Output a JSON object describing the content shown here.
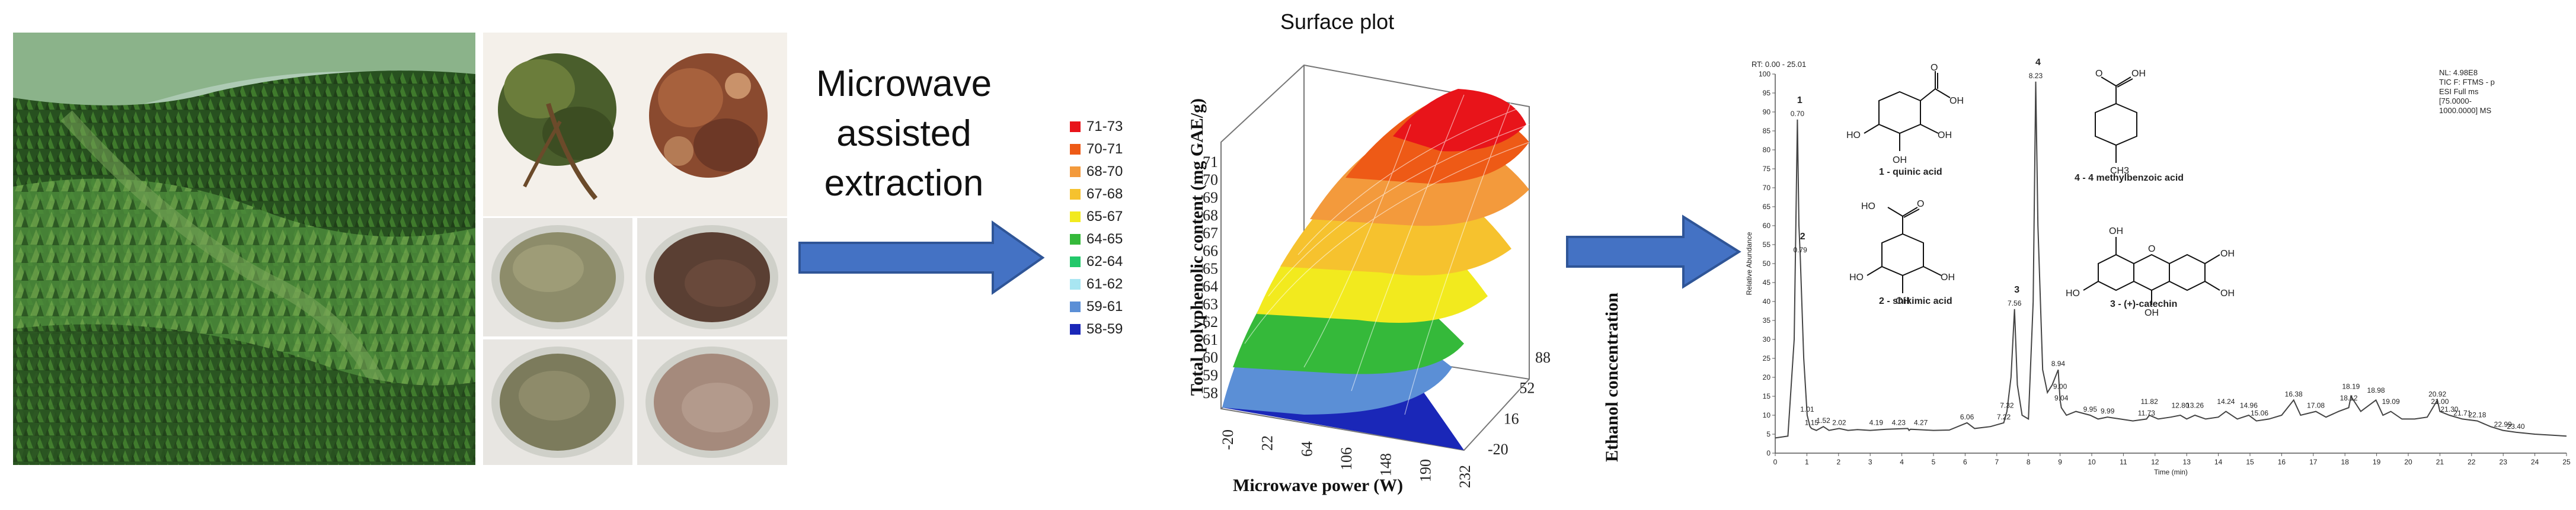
{
  "process": {
    "step1_label": "Microwave assisted extraction"
  },
  "surface_plot": {
    "title": "Surface plot",
    "legend": [
      {
        "range": "71-73",
        "color": "#e8141a"
      },
      {
        "range": "70-71",
        "color": "#ee5a16"
      },
      {
        "range": "68-70",
        "color": "#f39a3c"
      },
      {
        "range": "67-68",
        "color": "#f6c22e"
      },
      {
        "range": "65-67",
        "color": "#f2ea1e"
      },
      {
        "range": "64-65",
        "color": "#35b93a"
      },
      {
        "range": "62-64",
        "color": "#22c86a"
      },
      {
        "range": "61-62",
        "color": "#a8e6f2"
      },
      {
        "range": "59-61",
        "color": "#5b8fd6"
      },
      {
        "range": "58-59",
        "color": "#1a27b8"
      }
    ],
    "z_ticks": [
      "71",
      "70",
      "69",
      "68",
      "67",
      "66",
      "65",
      "64",
      "63",
      "62",
      "61",
      "60",
      "59",
      "58"
    ],
    "x_ticks": [
      "-20",
      "22",
      "64",
      "106",
      "148",
      "190",
      "232"
    ],
    "y_ticks": [
      "88",
      "52",
      "16",
      "-20"
    ],
    "zlabel": "Total polyphenolic content (mg GAE/g)",
    "xlabel": "Microwave power (W)",
    "ylabel": "Ethanol concentration"
  },
  "chart_data": {
    "type": "line",
    "title": "",
    "xlabel": "Time (min)",
    "ylabel": "Relative Abundance",
    "xlim": [
      0,
      25
    ],
    "ylim": [
      0,
      100
    ],
    "header_left": "RT: 0.00 - 25.01",
    "header_right": [
      "NL: 4.98E8",
      "TIC F: FTMS - p",
      "ESI Full ms",
      "[75.0000-",
      "1000.0000] MS"
    ],
    "x_ticks": [
      "0",
      "1",
      "2",
      "3",
      "4",
      "5",
      "6",
      "7",
      "8",
      "9",
      "10",
      "11",
      "12",
      "13",
      "14",
      "15",
      "16",
      "17",
      "18",
      "19",
      "20",
      "21",
      "22",
      "23",
      "24",
      "25"
    ],
    "y_ticks": [
      "0",
      "5",
      "10",
      "15",
      "20",
      "25",
      "30",
      "35",
      "40",
      "45",
      "50",
      "55",
      "60",
      "65",
      "70",
      "75",
      "80",
      "85",
      "90",
      "95",
      "100"
    ],
    "trace": [
      [
        0,
        4
      ],
      [
        0.4,
        4.5
      ],
      [
        0.6,
        30
      ],
      [
        0.7,
        88
      ],
      [
        0.75,
        60
      ],
      [
        0.79,
        52
      ],
      [
        0.9,
        25
      ],
      [
        1.01,
        10
      ],
      [
        1.1,
        7
      ],
      [
        1.15,
        6.5
      ],
      [
        1.3,
        6
      ],
      [
        1.52,
        7
      ],
      [
        1.7,
        6
      ],
      [
        2.02,
        6.5
      ],
      [
        2.3,
        6
      ],
      [
        2.6,
        6.2
      ],
      [
        3.0,
        6
      ],
      [
        3.5,
        6.3
      ],
      [
        4.19,
        6.5
      ],
      [
        4.23,
        6
      ],
      [
        4.5,
        6.2
      ],
      [
        4.27,
        6.3
      ],
      [
        5.0,
        6
      ],
      [
        5.5,
        6.1
      ],
      [
        6.06,
        8
      ],
      [
        6.3,
        6.5
      ],
      [
        6.8,
        7
      ],
      [
        7.22,
        8
      ],
      [
        7.32,
        11
      ],
      [
        7.45,
        20
      ],
      [
        7.56,
        38
      ],
      [
        7.65,
        18
      ],
      [
        7.8,
        10
      ],
      [
        8.0,
        9
      ],
      [
        8.15,
        40
      ],
      [
        8.23,
        98
      ],
      [
        8.3,
        60
      ],
      [
        8.45,
        22
      ],
      [
        8.6,
        16
      ],
      [
        8.75,
        18
      ],
      [
        8.94,
        22
      ],
      [
        9.0,
        14
      ],
      [
        9.04,
        12
      ],
      [
        9.2,
        10
      ],
      [
        9.5,
        11
      ],
      [
        9.95,
        10
      ],
      [
        10.2,
        9
      ],
      [
        10.5,
        9.5
      ],
      [
        10.9,
        9
      ],
      [
        11.3,
        8.5
      ],
      [
        11.73,
        9
      ],
      [
        11.82,
        10
      ],
      [
        12.1,
        9
      ],
      [
        12.5,
        9.5
      ],
      [
        12.8,
        10
      ],
      [
        13.0,
        9
      ],
      [
        13.26,
        10
      ],
      [
        13.6,
        9
      ],
      [
        14.0,
        9.5
      ],
      [
        14.24,
        11
      ],
      [
        14.6,
        9
      ],
      [
        14.96,
        10
      ],
      [
        15.2,
        8.5
      ],
      [
        15.6,
        9
      ],
      [
        16.0,
        10
      ],
      [
        16.38,
        14
      ],
      [
        16.6,
        10
      ],
      [
        17.08,
        11
      ],
      [
        17.4,
        9.5
      ],
      [
        17.8,
        11
      ],
      [
        18.12,
        12
      ],
      [
        18.19,
        15
      ],
      [
        18.5,
        11
      ],
      [
        18.98,
        14
      ],
      [
        19.2,
        10
      ],
      [
        19.45,
        11
      ],
      [
        19.8,
        9
      ],
      [
        20.2,
        9
      ],
      [
        20.6,
        9.5
      ],
      [
        20.92,
        14
      ],
      [
        21.0,
        11
      ],
      [
        21.3,
        10
      ],
      [
        21.71,
        9
      ],
      [
        22.18,
        8.5
      ],
      [
        22.6,
        7
      ],
      [
        22.99,
        6
      ],
      [
        23.4,
        5.5
      ],
      [
        24,
        5
      ],
      [
        25,
        4.5
      ]
    ],
    "peak_labels": [
      {
        "x": 0.7,
        "y": 88,
        "text": "0.70",
        "num": "1"
      },
      {
        "x": 0.79,
        "y": 52,
        "text": "0.79",
        "num": "2"
      },
      {
        "x": 1.01,
        "y": 10,
        "text": "1.01"
      },
      {
        "x": 1.15,
        "y": 6.5,
        "text": "1.15"
      },
      {
        "x": 1.52,
        "y": 7,
        "text": "1.52"
      },
      {
        "x": 2.02,
        "y": 6.5,
        "text": "2.02"
      },
      {
        "x": 3.19,
        "y": 6.5,
        "text": "4.19"
      },
      {
        "x": 3.9,
        "y": 6.5,
        "text": "4.23"
      },
      {
        "x": 4.6,
        "y": 6.5,
        "text": "4.27"
      },
      {
        "x": 6.06,
        "y": 8,
        "text": "6.06"
      },
      {
        "x": 7.22,
        "y": 8,
        "text": "7.22"
      },
      {
        "x": 7.32,
        "y": 11,
        "text": "7.32"
      },
      {
        "x": 7.56,
        "y": 38,
        "text": "7.56",
        "num": "3"
      },
      {
        "x": 8.23,
        "y": 98,
        "text": "8.23",
        "num": "4"
      },
      {
        "x": 8.94,
        "y": 22,
        "text": "8.94"
      },
      {
        "x": 9.0,
        "y": 16,
        "text": "9.00"
      },
      {
        "x": 9.04,
        "y": 13,
        "text": "9.04"
      },
      {
        "x": 9.95,
        "y": 10,
        "text": "9.95"
      },
      {
        "x": 10.5,
        "y": 9.5,
        "text": "9.99"
      },
      {
        "x": 11.73,
        "y": 9,
        "text": "11.73"
      },
      {
        "x": 11.82,
        "y": 12,
        "text": "11.82"
      },
      {
        "x": 12.8,
        "y": 11,
        "text": "12.80"
      },
      {
        "x": 13.26,
        "y": 11,
        "text": "13.26"
      },
      {
        "x": 14.24,
        "y": 12,
        "text": "14.24"
      },
      {
        "x": 14.96,
        "y": 11,
        "text": "14.96"
      },
      {
        "x": 15.3,
        "y": 9,
        "text": "15.06"
      },
      {
        "x": 16.38,
        "y": 14,
        "text": "16.38"
      },
      {
        "x": 17.08,
        "y": 11,
        "text": "17.08"
      },
      {
        "x": 18.12,
        "y": 13,
        "text": "18.12"
      },
      {
        "x": 18.19,
        "y": 16,
        "text": "18.19"
      },
      {
        "x": 18.98,
        "y": 15,
        "text": "18.98"
      },
      {
        "x": 19.45,
        "y": 12,
        "text": "19.09"
      },
      {
        "x": 20.92,
        "y": 14,
        "text": "20.92"
      },
      {
        "x": 21.0,
        "y": 12,
        "text": "21.00"
      },
      {
        "x": 21.3,
        "y": 10,
        "text": "21.30"
      },
      {
        "x": 21.71,
        "y": 9,
        "text": "21.71"
      },
      {
        "x": 22.18,
        "y": 8.5,
        "text": "22.18"
      },
      {
        "x": 22.99,
        "y": 6,
        "text": "22.99"
      },
      {
        "x": 23.4,
        "y": 5.5,
        "text": "23.40"
      }
    ]
  },
  "compounds": [
    {
      "num": "1",
      "name": "1 - quinic acid"
    },
    {
      "num": "2",
      "name": "2 - shikimic acid"
    },
    {
      "num": "3",
      "name": "3 - (+)-catechin"
    },
    {
      "num": "4",
      "name": "4 - 4 methylbenzoic acid"
    }
  ],
  "struct_labels": {
    "oh": "OH",
    "o": "O",
    "ho": "HO",
    "ch3": "CH3"
  },
  "colors": {
    "arrow": "#4472c4",
    "arrow_dark": "#2f5597",
    "trace": "#444444"
  }
}
